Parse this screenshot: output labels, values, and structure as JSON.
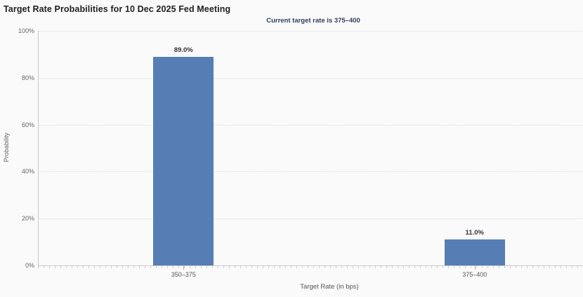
{
  "chart_data": {
    "type": "bar",
    "title": "Target Rate Probabilities for 10 Dec 2025 Fed Meeting",
    "subtitle": "Current target rate is 375–400",
    "categories": [
      "350–375",
      "375–400"
    ],
    "values": [
      89.0,
      11.0
    ],
    "value_labels": [
      "89.0%",
      "11.0%"
    ],
    "xlabel": "Target Rate (in bps)",
    "ylabel": "Probability",
    "ylim": [
      0,
      100
    ],
    "yticks": [
      0,
      20,
      40,
      60,
      80,
      100
    ],
    "ytick_labels": [
      "0%",
      "20%",
      "40%",
      "60%",
      "80%",
      "100%"
    ],
    "grid": "horizontal-dotted",
    "legend": "none",
    "colors": {
      "bar": "#567eb4",
      "subtitle_text": "#2f3b63",
      "title_text": "#1f1f1f",
      "axis_line": "#c8c8c8",
      "tick_text": "#666666"
    }
  }
}
